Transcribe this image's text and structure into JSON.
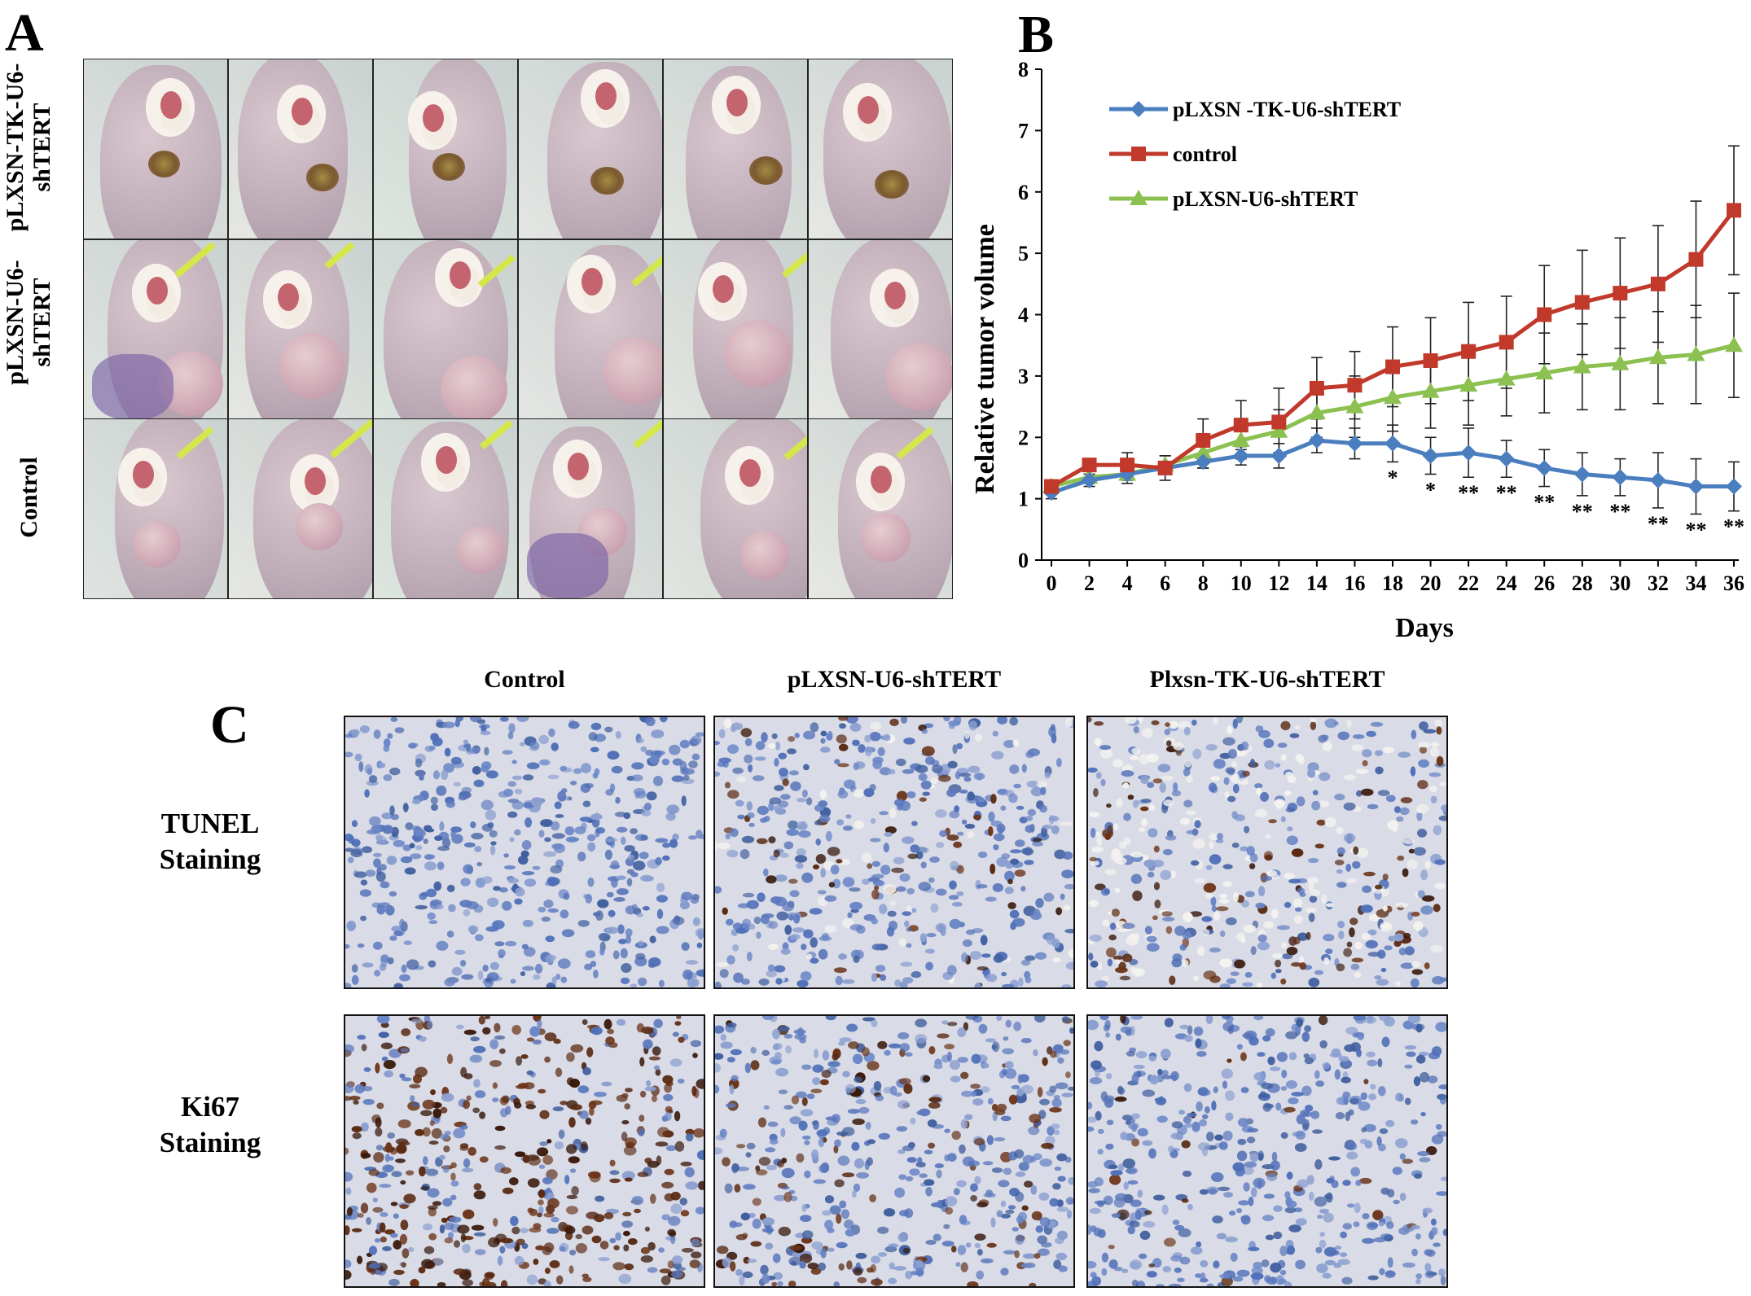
{
  "panel_a": {
    "letter": "A",
    "row_labels": [
      {
        "line1": "pLXSN-TK-U6-",
        "line2": "shTERT"
      },
      {
        "line1": "pLXSN-U6-",
        "line2": "shTERT"
      },
      {
        "line1": "Control",
        "line2": ""
      }
    ]
  },
  "panel_b": {
    "letter": "B"
  },
  "chart_data": {
    "type": "line",
    "title": "",
    "xlabel": "Days",
    "ylabel": "Relative tumor volume",
    "x": [
      0,
      2,
      4,
      6,
      8,
      10,
      12,
      14,
      16,
      18,
      20,
      22,
      24,
      26,
      28,
      30,
      32,
      34,
      36
    ],
    "xlim": [
      0,
      36
    ],
    "ylim": [
      0,
      8
    ],
    "yticks": [
      0,
      1,
      2,
      3,
      4,
      5,
      6,
      7,
      8
    ],
    "legend_position": "top-left",
    "series": [
      {
        "name": "pLXSN -TK-U6-shTERT",
        "color": "#4a7ebf",
        "marker": "diamond",
        "values": [
          1.1,
          1.3,
          1.4,
          1.5,
          1.6,
          1.7,
          1.7,
          1.95,
          1.9,
          1.9,
          1.7,
          1.75,
          1.65,
          1.5,
          1.4,
          1.35,
          1.3,
          1.2,
          1.2
        ],
        "errors": [
          0.1,
          0.1,
          0.1,
          0.1,
          0.1,
          0.15,
          0.2,
          0.2,
          0.25,
          0.3,
          0.3,
          0.4,
          0.3,
          0.3,
          0.35,
          0.3,
          0.45,
          0.45,
          0.4
        ]
      },
      {
        "name": "control",
        "color": "#c0392b",
        "marker": "square",
        "values": [
          1.2,
          1.55,
          1.55,
          1.5,
          1.95,
          2.2,
          2.25,
          2.8,
          2.85,
          3.15,
          3.25,
          3.4,
          3.55,
          4.0,
          4.2,
          4.35,
          4.5,
          4.9,
          5.7
        ],
        "errors": [
          0.1,
          0.1,
          0.2,
          0.2,
          0.35,
          0.4,
          0.55,
          0.5,
          0.55,
          0.65,
          0.7,
          0.8,
          0.75,
          0.8,
          0.85,
          0.9,
          0.95,
          0.95,
          1.05
        ]
      },
      {
        "name": "pLXSN-U6-shTERT",
        "color": "#8cc152",
        "marker": "triangle",
        "values": [
          1.2,
          1.35,
          1.4,
          1.55,
          1.75,
          1.95,
          2.1,
          2.4,
          2.5,
          2.65,
          2.75,
          2.85,
          2.95,
          3.05,
          3.15,
          3.2,
          3.3,
          3.35,
          3.5
        ],
        "errors": [
          0.1,
          0.1,
          0.15,
          0.15,
          0.25,
          0.3,
          0.35,
          0.4,
          0.5,
          0.55,
          0.6,
          0.65,
          0.6,
          0.65,
          0.7,
          0.75,
          0.75,
          0.8,
          0.85
        ]
      }
    ],
    "annotations": [
      {
        "x": 18,
        "text": "*"
      },
      {
        "x": 20,
        "text": "*"
      },
      {
        "x": 22,
        "text": "**"
      },
      {
        "x": 24,
        "text": "**"
      },
      {
        "x": 26,
        "text": "**"
      },
      {
        "x": 28,
        "text": "**"
      },
      {
        "x": 30,
        "text": "**"
      },
      {
        "x": 32,
        "text": "**"
      },
      {
        "x": 34,
        "text": "**"
      },
      {
        "x": 36,
        "text": "**"
      }
    ]
  },
  "panel_c": {
    "letter": "C",
    "column_headers": [
      "Control",
      "pLXSN-U6-shTERT",
      "Plxsn-TK-U6-shTERT"
    ],
    "row_labels": [
      {
        "line1": "TUNEL",
        "line2": "Staining"
      },
      {
        "line1": "Ki67",
        "line2": "Staining"
      }
    ]
  },
  "colors": {
    "background": "#ffffff",
    "tissue_blue": "#4f6fb8",
    "dab_brown": "#5a2a12"
  }
}
